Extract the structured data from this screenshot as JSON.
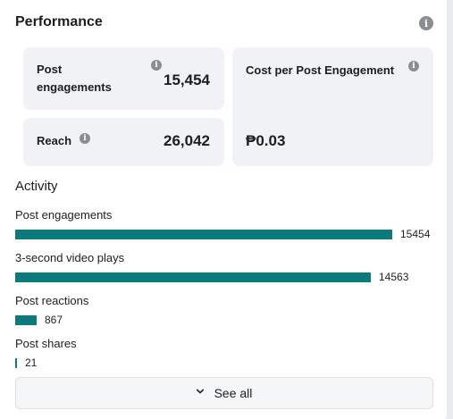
{
  "performance": {
    "title": "Performance",
    "engagements_label": "Post engagements",
    "engagements_value": "15,454",
    "reach_label": "Reach",
    "reach_value": "26,042",
    "cost_label": "Cost per Post Engagement",
    "cost_value": "₱0.03"
  },
  "activity": {
    "title": "Activity",
    "max": 15454,
    "items": [
      {
        "label": "Post engagements",
        "value": 15454
      },
      {
        "label": "3-second video plays",
        "value": 14563
      },
      {
        "label": "Post reactions",
        "value": 867
      },
      {
        "label": "Post shares",
        "value": 21
      }
    ]
  },
  "footer": {
    "see_all_label": "See all"
  },
  "colors": {
    "bar": "#0b7b7b",
    "card_bg": "#f0f2f5"
  },
  "icons": {
    "info": "info-icon",
    "see_all": "chevron-down-icon"
  }
}
